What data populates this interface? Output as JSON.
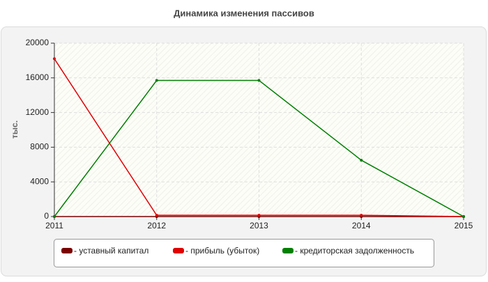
{
  "chart_data": {
    "type": "line",
    "title": "Динамика изменения пассивов",
    "y_label": "тыс.",
    "x": [
      2011,
      2012,
      2013,
      2014,
      2015
    ],
    "xlim": [
      2011,
      2015
    ],
    "xticks": [
      2011,
      2012,
      2013,
      2014,
      2015
    ],
    "ylim": [
      0,
      20000
    ],
    "yticks": [
      0,
      4000,
      8000,
      12000,
      16000,
      20000
    ],
    "grid": true,
    "legend": "bottom",
    "series": [
      {
        "name": "- уставный капитал",
        "color": "#7a0000",
        "values": [
          0,
          0,
          0,
          0,
          0
        ]
      },
      {
        "name": "- прибыль (убыток)",
        "color": "#e00000",
        "values": [
          18200,
          150,
          150,
          150,
          0
        ]
      },
      {
        "name": "- кредиторская задолженность",
        "color": "#008000",
        "values": [
          0,
          15700,
          15700,
          6500,
          0
        ]
      }
    ]
  }
}
